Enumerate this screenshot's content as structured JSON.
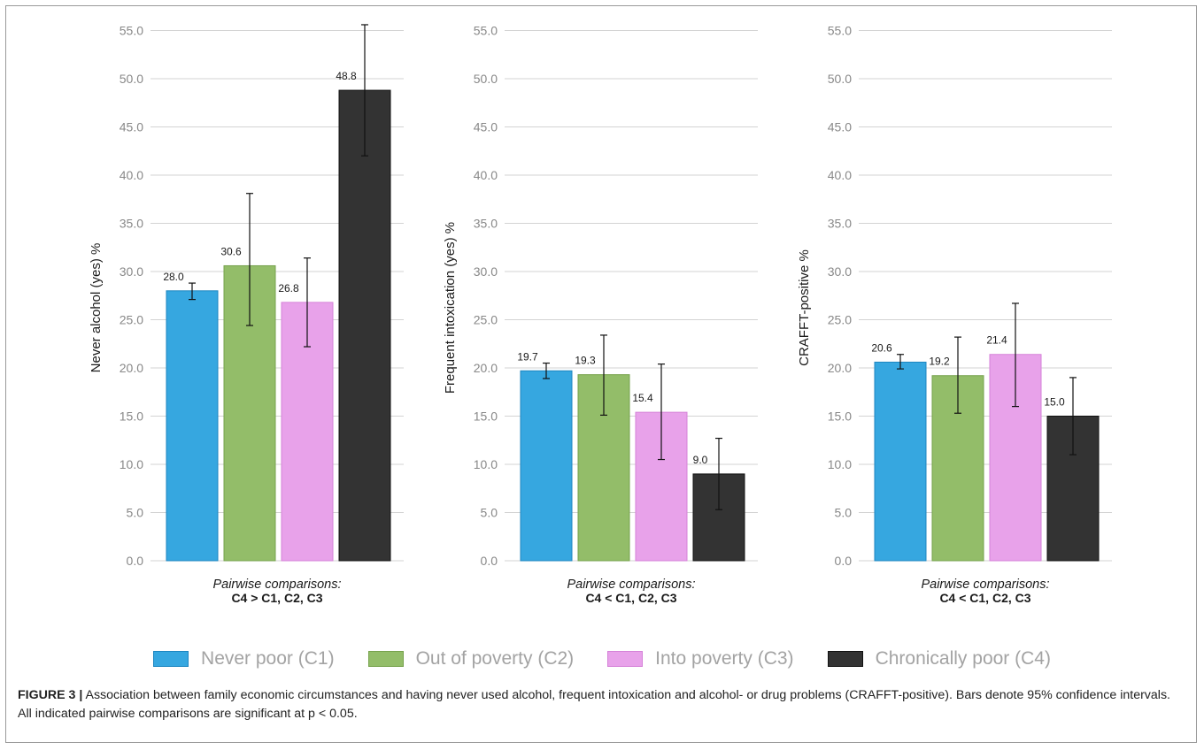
{
  "categories": [
    "Never poor (C1)",
    "Out of poverty (C2)",
    "Into poverty (C3)",
    "Chronically poor (C4)"
  ],
  "colors": {
    "fills": [
      "#36a7e0",
      "#93bd69",
      "#e8a2ea",
      "#333333"
    ],
    "strokes": [
      "#1d86c0",
      "#76a24c",
      "#d582d8",
      "#111111"
    ]
  },
  "chart_data": [
    {
      "type": "bar",
      "ylabel": "Never alcohol (yes) %",
      "ylim": [
        0,
        55
      ],
      "yticks": [
        "0.0",
        "5.0",
        "10.0",
        "15.0",
        "20.0",
        "25.0",
        "30.0",
        "35.0",
        "40.0",
        "45.0",
        "50.0",
        "55.0"
      ],
      "values": [
        28.0,
        30.6,
        26.8,
        48.8
      ],
      "value_labels": [
        "28.0",
        "30.6",
        "26.8",
        "48.8"
      ],
      "ci_low": [
        27.1,
        24.4,
        22.2,
        42.0
      ],
      "ci_high": [
        28.8,
        38.1,
        31.4,
        55.6
      ],
      "comparison_title": "Pairwise comparisons:",
      "comparison_result": "C4 > C1, C2, C3"
    },
    {
      "type": "bar",
      "ylabel": "Frequent intoxication (yes) %",
      "ylim": [
        0,
        55
      ],
      "yticks": [
        "0.0",
        "5.0",
        "10.0",
        "15.0",
        "20.0",
        "25.0",
        "30.0",
        "35.0",
        "40.0",
        "45.0",
        "50.0",
        "55.0"
      ],
      "values": [
        19.7,
        19.3,
        15.4,
        9.0
      ],
      "value_labels": [
        "19.7",
        "19.3",
        "15.4",
        "9.0"
      ],
      "ci_low": [
        18.9,
        15.1,
        10.5,
        5.3
      ],
      "ci_high": [
        20.5,
        23.4,
        20.4,
        12.7
      ],
      "comparison_title": "Pairwise comparisons:",
      "comparison_result": "C4 < C1, C2, C3"
    },
    {
      "type": "bar",
      "ylabel": "CRAFFT-positive %",
      "ylim": [
        0,
        55
      ],
      "yticks": [
        "0.0",
        "5.0",
        "10.0",
        "15.0",
        "20.0",
        "25.0",
        "30.0",
        "35.0",
        "40.0",
        "45.0",
        "50.0",
        "55.0"
      ],
      "values": [
        20.6,
        19.2,
        21.4,
        15.0
      ],
      "value_labels": [
        "20.6",
        "19.2",
        "21.4",
        "15.0"
      ],
      "ci_low": [
        19.9,
        15.3,
        16.0,
        11.0
      ],
      "ci_high": [
        21.4,
        23.2,
        26.7,
        19.0
      ],
      "comparison_title": "Pairwise comparisons:",
      "comparison_result": "C4 < C1, C2, C3"
    }
  ],
  "caption": {
    "figure_label": "FIGURE 3 |",
    "text": " Association between family economic circumstances and having never used alcohol, frequent intoxication and alcohol- or drug problems (CRAFFT-positive). Bars denote 95% confidence intervals. All indicated pairwise comparisons are significant at p < 0.05."
  }
}
